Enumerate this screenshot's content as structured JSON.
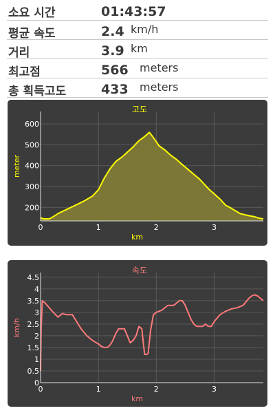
{
  "stats": [
    {
      "label": "소요 시간",
      "value": "01:43:57",
      "unit": ""
    },
    {
      "label": "평균 속도",
      "value": "2.4",
      "unit": "km/h"
    },
    {
      "label": "거리",
      "value": "3.9",
      "unit": "km"
    },
    {
      "label": "최고점",
      "value": "566",
      "unit": "meters"
    },
    {
      "label": "총 획득고도",
      "value": "433",
      "unit": "meters"
    }
  ],
  "chart_data": [
    {
      "type": "area",
      "title": "고도",
      "xlabel": "km",
      "ylabel": "meter",
      "xlim": [
        0,
        3.85
      ],
      "ylim": [
        135,
        660
      ],
      "xticks": [
        0,
        1,
        2,
        3
      ],
      "yticks": [
        200,
        300,
        400,
        500,
        600
      ],
      "grid": true,
      "color": "#ffff00",
      "fill": "#807a36",
      "series": [
        {
          "x": [
            0,
            0.05,
            0.15,
            0.2,
            0.3,
            0.45,
            0.6,
            0.75,
            0.9,
            1.0,
            1.1,
            1.2,
            1.3,
            1.4,
            1.5,
            1.6,
            1.7,
            1.8,
            1.88,
            1.95,
            2.05,
            2.15,
            2.25,
            2.35,
            2.45,
            2.6,
            2.75,
            2.9,
            3.0,
            3.1,
            3.2,
            3.3,
            3.45,
            3.6,
            3.7,
            3.78,
            3.85
          ],
          "y": [
            150,
            145,
            145,
            152,
            170,
            190,
            210,
            230,
            255,
            285,
            340,
            385,
            420,
            440,
            465,
            490,
            520,
            540,
            560,
            535,
            495,
            475,
            450,
            430,
            405,
            370,
            335,
            290,
            265,
            240,
            210,
            195,
            170,
            160,
            155,
            148,
            145
          ]
        }
      ]
    },
    {
      "type": "line",
      "title": "속도",
      "xlabel": "km",
      "ylabel": "km/h",
      "xlim": [
        0,
        3.85
      ],
      "ylim": [
        0,
        4.7
      ],
      "xticks": [
        0,
        1,
        2,
        3
      ],
      "yticks": [
        0,
        0.5,
        1,
        1.5,
        2,
        2.5,
        3,
        3.5,
        4,
        4.5
      ],
      "grid": true,
      "color": "#ff7a7a",
      "series": [
        {
          "x": [
            0,
            0.01,
            0.03,
            0.08,
            0.15,
            0.22,
            0.3,
            0.38,
            0.45,
            0.55,
            0.6,
            0.65,
            0.7,
            0.8,
            0.9,
            1.0,
            1.05,
            1.1,
            1.15,
            1.2,
            1.25,
            1.3,
            1.35,
            1.4,
            1.45,
            1.5,
            1.55,
            1.6,
            1.65,
            1.7,
            1.75,
            1.78,
            1.8,
            1.83,
            1.86,
            1.9,
            1.95,
            2.0,
            2.05,
            2.1,
            2.15,
            2.2,
            2.3,
            2.4,
            2.45,
            2.5,
            2.55,
            2.6,
            2.65,
            2.7,
            2.75,
            2.8,
            2.85,
            2.9,
            2.95,
            3.0,
            3.1,
            3.2,
            3.3,
            3.4,
            3.5,
            3.55,
            3.6,
            3.65,
            3.7,
            3.75,
            3.8,
            3.85
          ],
          "y": [
            0.5,
            2.2,
            3.5,
            3.4,
            3.2,
            3.0,
            2.8,
            2.95,
            2.9,
            2.9,
            2.7,
            2.5,
            2.3,
            2.0,
            1.8,
            1.65,
            1.55,
            1.5,
            1.5,
            1.6,
            1.8,
            2.1,
            2.3,
            2.3,
            2.3,
            2.0,
            1.7,
            1.8,
            2.0,
            2.4,
            2.3,
            1.6,
            1.2,
            1.2,
            1.25,
            2.2,
            2.9,
            3.0,
            3.05,
            3.1,
            3.2,
            3.3,
            3.3,
            3.5,
            3.5,
            3.3,
            3.0,
            2.7,
            2.5,
            2.4,
            2.4,
            2.4,
            2.5,
            2.4,
            2.4,
            2.6,
            2.9,
            3.05,
            3.15,
            3.2,
            3.3,
            3.45,
            3.6,
            3.7,
            3.75,
            3.7,
            3.6,
            3.5
          ]
        }
      ]
    }
  ]
}
